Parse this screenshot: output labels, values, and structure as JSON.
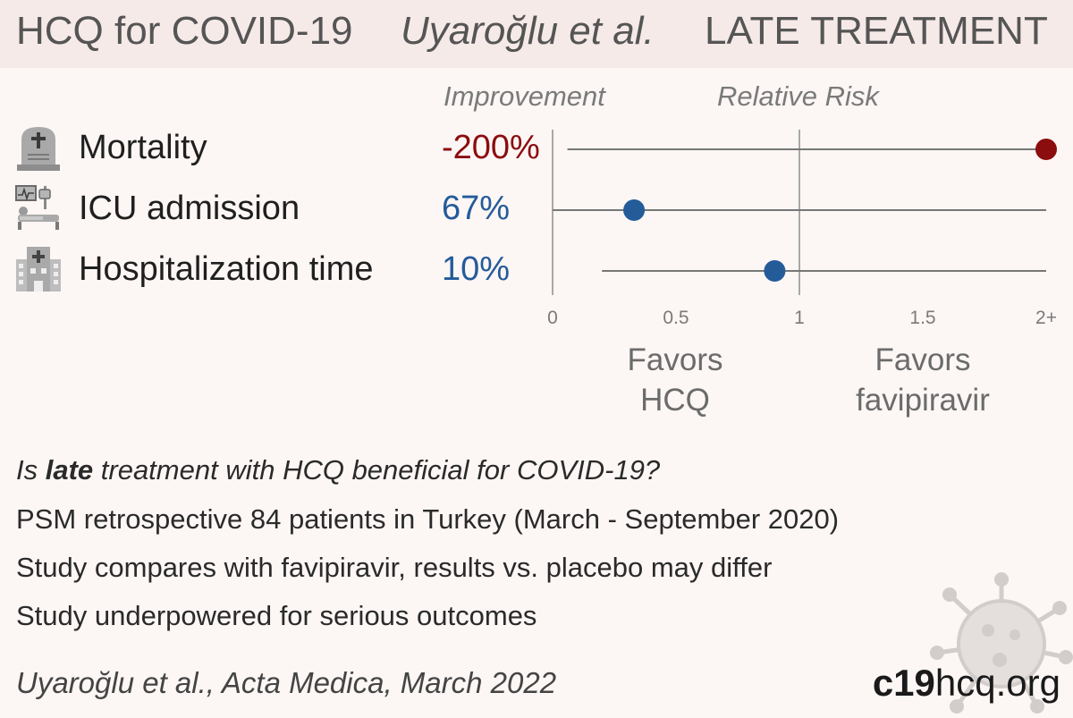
{
  "header": {
    "title": "HCQ for COVID-19",
    "author": "Uyaroğlu et al.",
    "stage": "LATE TREATMENT"
  },
  "columns": {
    "improvement": "Improvement",
    "relative_risk": "Relative Risk"
  },
  "outcomes": [
    {
      "label": "Mortality",
      "improvement": "-200%",
      "icon": "tombstone-icon",
      "color": "#8b0d0d"
    },
    {
      "label": "ICU admission",
      "improvement": "67%",
      "icon": "icu-bed-icon",
      "color": "#245b99"
    },
    {
      "label": "Hospitalization time",
      "improvement": "10%",
      "icon": "hospital-icon",
      "color": "#245b99"
    }
  ],
  "chart_data": {
    "type": "scatter",
    "title": "",
    "xlabel": "Relative Risk",
    "xlim": [
      0,
      2
    ],
    "x_ticks": [
      "0",
      "0.5",
      "1",
      "1.5",
      "2+"
    ],
    "reference_line": 1,
    "series": [
      {
        "name": "Mortality",
        "estimate": 2.0,
        "ci": [
          0.06,
          2.0
        ],
        "color": "#8b0d0d"
      },
      {
        "name": "ICU admission",
        "estimate": 0.33,
        "ci": [
          0.0,
          2.0
        ],
        "color": "#245b99"
      },
      {
        "name": "Hospitalization time",
        "estimate": 0.9,
        "ci": [
          0.2,
          2.0
        ],
        "color": "#245b99"
      }
    ],
    "favors_left": [
      "Favors",
      "HCQ"
    ],
    "favors_right": [
      "Favors",
      "favipiravir"
    ]
  },
  "question": {
    "prefix": "Is ",
    "emphasis": "late",
    "suffix": " treatment with HCQ beneficial for COVID-19?"
  },
  "details": [
    "PSM retrospective 84 patients in Turkey (March - September 2020)",
    "Study compares with favipiravir, results vs. placebo may differ",
    "Study underpowered for serious outcomes"
  ],
  "citation": "Uyaroğlu et al., Acta Medica, March 2022",
  "brand": {
    "bold": "c19",
    "rest": "hcq.org"
  }
}
